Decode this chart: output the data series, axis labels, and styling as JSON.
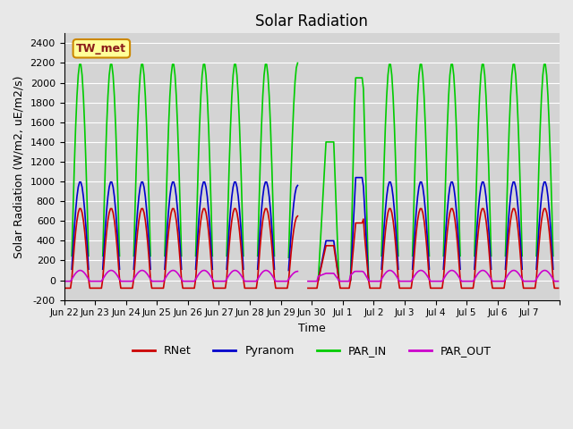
{
  "title": "Solar Radiation",
  "xlabel": "Time",
  "ylabel": "Solar Radiation (W/m2, uE/m2/s)",
  "ylim": [
    -200,
    2500
  ],
  "yticks": [
    -200,
    0,
    200,
    400,
    600,
    800,
    1000,
    1200,
    1400,
    1600,
    1800,
    2000,
    2200,
    2400
  ],
  "bg_color": "#e8e8e8",
  "plot_bg_color": "#d4d4d4",
  "legend_label": "TW_met",
  "legend_box_color": "#ffff99",
  "legend_box_edge": "#cc8800",
  "line_colors": {
    "RNet": "#cc0000",
    "Pyranom": "#0000cc",
    "PAR_IN": "#00cc00",
    "PAR_OUT": "#cc00cc"
  },
  "xtick_labels": [
    "Jun 22",
    "Jun 23",
    "Jun 24",
    "Jun 25",
    "Jun 26",
    "Jun 27",
    "Jun 28",
    "Jun 29",
    "Jun 30",
    "Jul 1",
    "Jul 2",
    "Jul 3",
    "Jul 4",
    "Jul 5",
    "Jul 6",
    "Jul 7",
    ""
  ]
}
